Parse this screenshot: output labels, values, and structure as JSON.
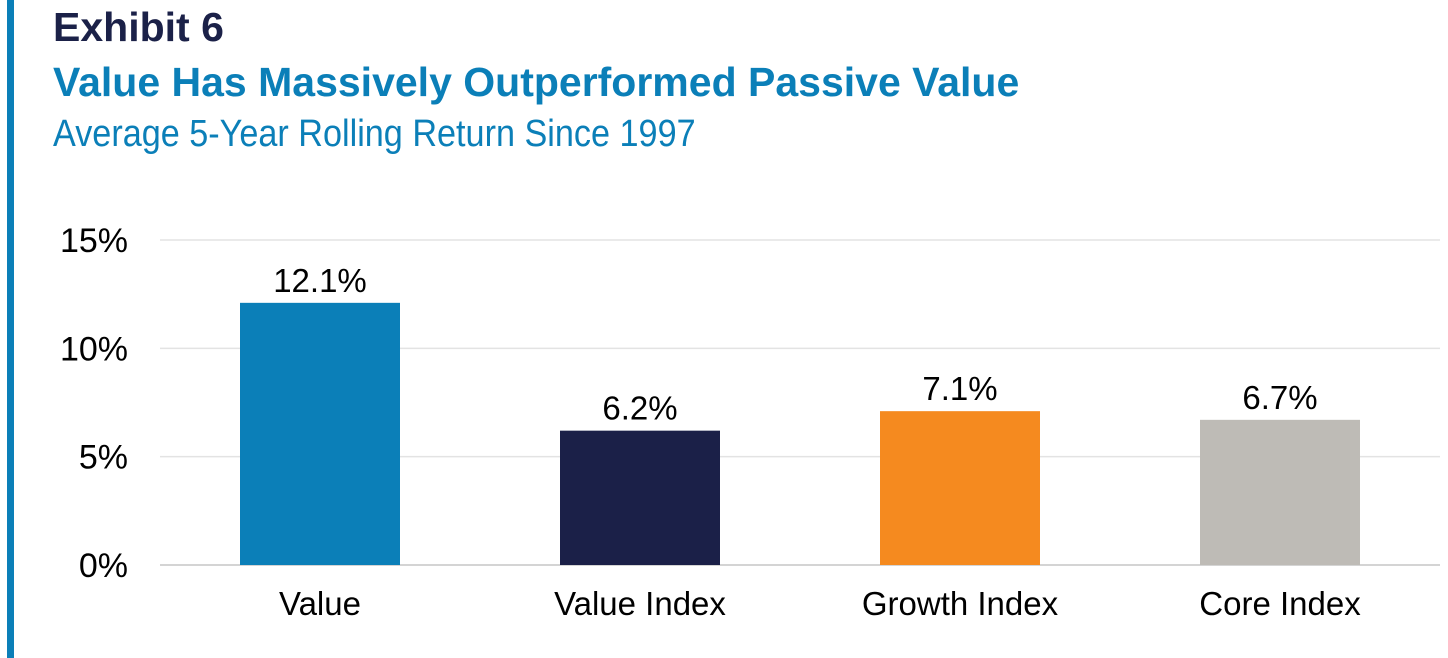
{
  "header": {
    "exhibit": "Exhibit 6",
    "title": "Value Has Massively Outperformed Passive Value",
    "subtitle": "Average 5-Year Rolling Return Since 1997"
  },
  "chart_data": {
    "type": "bar",
    "categories": [
      "Value",
      "Value Index",
      "Growth Index",
      "Core Index"
    ],
    "values": [
      12.1,
      6.2,
      7.1,
      6.7
    ],
    "value_labels": [
      "12.1%",
      "6.2%",
      "7.1%",
      "6.7%"
    ],
    "colors": [
      "#0b7fb8",
      "#1b2048",
      "#f58a1f",
      "#bebbb6"
    ],
    "yticks": [
      0,
      5,
      10,
      15
    ],
    "ytick_labels": [
      "0%",
      "5%",
      "10%",
      "15%"
    ],
    "ylim": [
      0,
      15
    ],
    "grid": true,
    "legend": "none"
  }
}
